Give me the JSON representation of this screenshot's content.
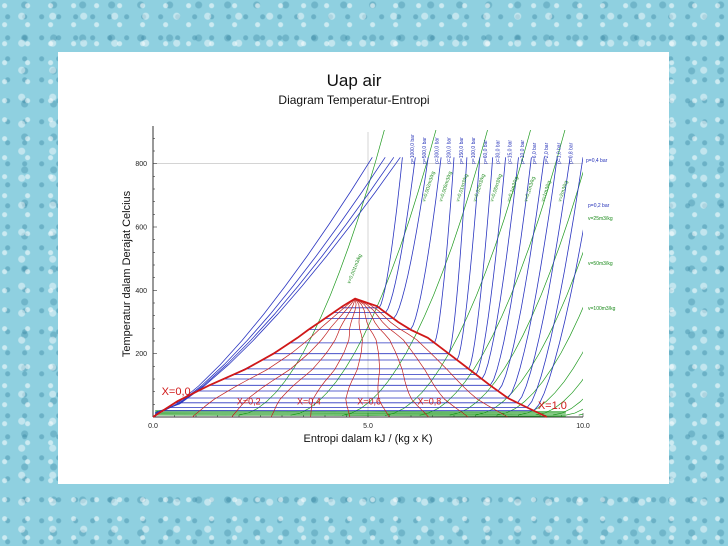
{
  "chart_data": {
    "type": "line",
    "title": "Uap air",
    "subtitle": "Diagram Temperatur-Entropi",
    "xlabel": "Entropi dalam kJ / (kg x K)",
    "ylabel": "Temperatur dalam Derajat Celcius",
    "xlim": [
      0,
      10
    ],
    "ylim": [
      0,
      900
    ],
    "x_ticks": [
      "0.0",
      "5.0",
      "10.0"
    ],
    "y_ticks": [
      "200",
      "400",
      "600",
      "800"
    ],
    "colors": {
      "saturation": "#d01818",
      "quality": "#c02020",
      "isobar": "#2a35c0",
      "isochore": "#1f9a1f",
      "grid": "#bbbbbb"
    },
    "saturation_dome": {
      "s": [
        0.0,
        0.57,
        1.31,
        2.14,
        2.8,
        3.36,
        3.61,
        3.88,
        4.41,
        4.7,
        5.21,
        5.7,
        6.0,
        6.39,
        6.88,
        7.36,
        7.84,
        8.25,
        8.7,
        9.16
      ],
      "T": [
        0,
        50,
        100,
        150,
        200,
        250,
        275,
        300,
        350,
        373.9,
        350,
        300,
        275,
        250,
        200,
        150,
        100,
        60,
        30,
        0
      ]
    },
    "quality_labels": [
      {
        "label": "X=0,0",
        "s": 0.2,
        "T": 70
      },
      {
        "label": "X=0,2",
        "s": 1.95,
        "T": 40
      },
      {
        "label": "X=0,4",
        "s": 3.35,
        "T": 40
      },
      {
        "label": "X=0,6",
        "s": 4.75,
        "T": 40
      },
      {
        "label": "X=0,8",
        "s": 6.15,
        "T": 40
      },
      {
        "label": "X=1.0",
        "s": 8.95,
        "T": 25
      }
    ],
    "isobar_labels": [
      "p=1000,0 bar",
      "p=500,0 bar",
      "p=300,0 bar",
      "p=200,0 bar",
      "p=150,0 bar",
      "p=100,0 bar",
      "p=60,0 bar",
      "p=30,0 bar",
      "p=15,0 bar",
      "p=10,0 bar",
      "p=6,0 bar",
      "p=2,0 bar",
      "p=1,0 bar",
      "p=0,8 bar",
      "p=0,4 bar",
      "p=0,2 bar"
    ],
    "isochore_labels": [
      "v=0,001m3/kg",
      "v=0,002m3/kg",
      "v=0,005m3/kg",
      "v=0,01m3/kg",
      "v=0,02m3/kg",
      "v=0,05m3/kg",
      "v=0,1m3/kg",
      "v=0,2m3/kg",
      "v=1m3/kg",
      "v=2m3/kg",
      "v=25m3/kg",
      "v=50m3/kg",
      "v=100m3/kg"
    ],
    "grid": true
  }
}
